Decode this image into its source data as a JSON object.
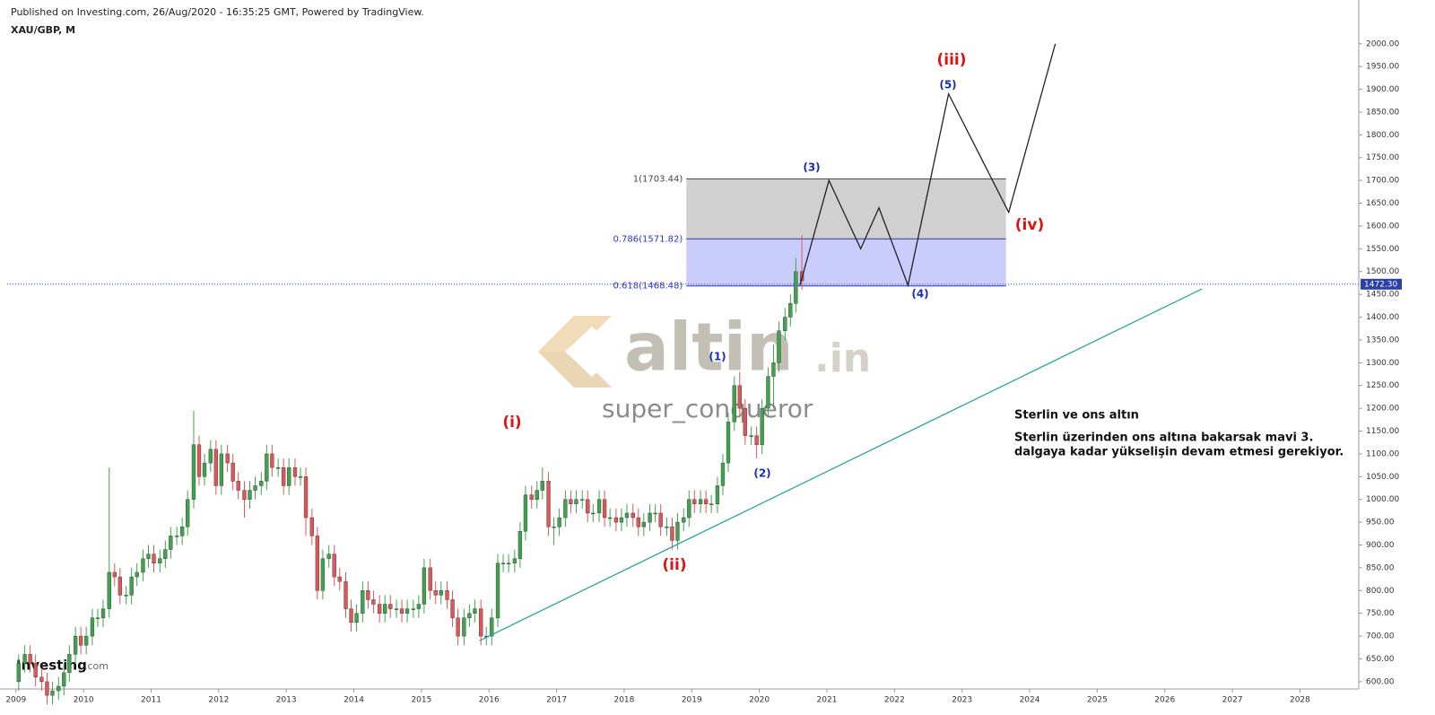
{
  "header": {
    "published": "Published on Investing.com, 26/Aug/2020 - 16:35:25 GMT, Powered by TradingView.",
    "symbol": "XAU/GBP, M"
  },
  "watermark": {
    "brand": "altin",
    "suffix": ".in",
    "author": "super_conqueror",
    "logo": "Investing",
    "logo_suffix": ".com"
  },
  "note": {
    "title": "Sterlin ve ons altın",
    "lines": [
      "Sterlin üzerinden ons altına bakarsak mavi 3.",
      "dalgaya kadar yükselişin devam etmesi gerekiyor."
    ]
  },
  "wave_labels": [
    {
      "text": "(i)",
      "color": "#e01010"
    },
    {
      "text": "(ii)",
      "color": "#e01010"
    },
    {
      "text": "(iii)",
      "color": "#e01010"
    },
    {
      "text": "(iv)",
      "color": "#e01010"
    },
    {
      "text": "(1)",
      "color": "#1a2fb0"
    },
    {
      "text": "(2)",
      "color": "#1a2fb0"
    },
    {
      "text": "(3)",
      "color": "#1a2fb0"
    },
    {
      "text": "(4)",
      "color": "#1a2fb0"
    },
    {
      "text": "(5)",
      "color": "#1a2fb0"
    }
  ],
  "chart_data": {
    "type": "candlestick",
    "x": [
      2009.04,
      2009.13,
      2009.21,
      2009.29,
      2009.38,
      2009.46,
      2009.54,
      2009.63,
      2009.71,
      2009.79,
      2009.88,
      2009.96,
      2010.04,
      2010.13,
      2010.21,
      2010.29,
      2010.38,
      2010.46,
      2010.54,
      2010.63,
      2010.71,
      2010.79,
      2010.88,
      2010.96,
      2011.04,
      2011.13,
      2011.21,
      2011.29,
      2011.38,
      2011.46,
      2011.54,
      2011.63,
      2011.71,
      2011.79,
      2011.88,
      2011.96,
      2012.04,
      2012.13,
      2012.21,
      2012.29,
      2012.38,
      2012.46,
      2012.54,
      2012.63,
      2012.71,
      2012.79,
      2012.88,
      2012.96,
      2013.04,
      2013.13,
      2013.21,
      2013.29,
      2013.38,
      2013.46,
      2013.54,
      2013.63,
      2013.71,
      2013.79,
      2013.88,
      2013.96,
      2014.04,
      2014.13,
      2014.21,
      2014.29,
      2014.38,
      2014.46,
      2014.54,
      2014.63,
      2014.71,
      2014.79,
      2014.88,
      2014.96,
      2015.04,
      2015.13,
      2015.21,
      2015.29,
      2015.38,
      2015.46,
      2015.54,
      2015.63,
      2015.71,
      2015.79,
      2015.88,
      2015.96,
      2016.04,
      2016.13,
      2016.21,
      2016.29,
      2016.38,
      2016.46,
      2016.54,
      2016.63,
      2016.71,
      2016.79,
      2016.88,
      2016.96,
      2017.04,
      2017.13,
      2017.21,
      2017.29,
      2017.38,
      2017.46,
      2017.54,
      2017.63,
      2017.71,
      2017.79,
      2017.88,
      2017.96,
      2018.04,
      2018.13,
      2018.21,
      2018.29,
      2018.38,
      2018.46,
      2018.54,
      2018.63,
      2018.71,
      2018.79,
      2018.88,
      2018.96,
      2019.04,
      2019.13,
      2019.21,
      2019.29,
      2019.38,
      2019.46,
      2019.54,
      2019.63,
      2019.71,
      2019.79,
      2019.88,
      2019.96,
      2020.04,
      2020.13,
      2020.21,
      2020.29,
      2020.38,
      2020.46,
      2020.54,
      2020.63
    ],
    "open": [
      600,
      640,
      660,
      640,
      610,
      600,
      570,
      580,
      590,
      620,
      660,
      700,
      680,
      700,
      740,
      740,
      760,
      840,
      830,
      790,
      790,
      830,
      840,
      870,
      880,
      860,
      870,
      890,
      920,
      920,
      940,
      1000,
      1120,
      1050,
      1080,
      1110,
      1030,
      1100,
      1080,
      1040,
      1020,
      1000,
      1020,
      1030,
      1040,
      1100,
      1070,
      1070,
      1030,
      1070,
      1050,
      1050,
      960,
      920,
      800,
      870,
      880,
      830,
      820,
      760,
      730,
      750,
      800,
      780,
      770,
      750,
      770,
      760,
      760,
      750,
      760,
      760,
      770,
      850,
      800,
      790,
      800,
      780,
      740,
      700,
      740,
      750,
      760,
      700,
      700,
      740,
      860,
      860,
      860,
      870,
      930,
      1010,
      1000,
      1020,
      1040,
      940,
      940,
      960,
      1000,
      990,
      1000,
      1000,
      970,
      970,
      1000,
      960,
      960,
      950,
      960,
      970,
      960,
      940,
      950,
      970,
      970,
      940,
      940,
      910,
      950,
      960,
      1000,
      990,
      1000,
      990,
      990,
      1030,
      1080,
      1170,
      1250,
      1200,
      1140,
      1140,
      1120,
      1200,
      1270,
      1300,
      1370,
      1400,
      1430,
      1500
    ],
    "high": [
      660,
      680,
      680,
      660,
      630,
      620,
      600,
      610,
      640,
      680,
      720,
      720,
      720,
      760,
      760,
      780,
      1070,
      860,
      850,
      810,
      850,
      860,
      890,
      900,
      900,
      890,
      910,
      940,
      940,
      960,
      1020,
      1195,
      1140,
      1100,
      1130,
      1130,
      1120,
      1120,
      1100,
      1060,
      1040,
      1040,
      1050,
      1060,
      1120,
      1120,
      1090,
      1090,
      1090,
      1090,
      1070,
      1070,
      980,
      940,
      890,
      900,
      900,
      850,
      840,
      780,
      770,
      820,
      820,
      800,
      790,
      790,
      790,
      780,
      780,
      780,
      780,
      790,
      870,
      870,
      820,
      820,
      820,
      800,
      760,
      760,
      770,
      780,
      780,
      720,
      760,
      880,
      880,
      880,
      890,
      950,
      1030,
      1030,
      1040,
      1070,
      1060,
      960,
      980,
      1020,
      1020,
      1020,
      1020,
      1020,
      990,
      1020,
      1020,
      980,
      980,
      980,
      990,
      990,
      980,
      970,
      990,
      990,
      990,
      960,
      960,
      970,
      980,
      1020,
      1020,
      1020,
      1020,
      1010,
      1050,
      1100,
      1190,
      1270,
      1280,
      1220,
      1160,
      1160,
      1220,
      1290,
      1340,
      1390,
      1420,
      1450,
      1530,
      1580
    ],
    "low": [
      580,
      620,
      620,
      590,
      580,
      550,
      550,
      560,
      570,
      600,
      640,
      660,
      660,
      680,
      720,
      720,
      740,
      810,
      770,
      770,
      770,
      810,
      820,
      850,
      840,
      840,
      850,
      870,
      900,
      900,
      920,
      980,
      1030,
      1030,
      1060,
      1010,
      1010,
      1060,
      1020,
      1000,
      960,
      980,
      1000,
      1010,
      1020,
      1050,
      1050,
      1010,
      1010,
      1030,
      1030,
      920,
      900,
      780,
      780,
      850,
      810,
      800,
      740,
      710,
      710,
      730,
      760,
      750,
      730,
      730,
      740,
      740,
      730,
      730,
      740,
      740,
      750,
      780,
      770,
      770,
      760,
      720,
      680,
      680,
      720,
      730,
      680,
      680,
      680,
      720,
      840,
      840,
      840,
      850,
      910,
      980,
      980,
      1000,
      920,
      900,
      920,
      940,
      970,
      970,
      980,
      950,
      950,
      950,
      940,
      940,
      930,
      930,
      940,
      940,
      920,
      920,
      930,
      950,
      920,
      920,
      890,
      890,
      930,
      940,
      970,
      970,
      970,
      970,
      970,
      1010,
      1060,
      1150,
      1180,
      1120,
      1120,
      1090,
      1100,
      1180,
      1200,
      1280,
      1350,
      1380,
      1410,
      1460
    ],
    "close": [
      640,
      660,
      640,
      610,
      600,
      570,
      580,
      590,
      620,
      660,
      700,
      680,
      700,
      740,
      740,
      760,
      840,
      830,
      790,
      790,
      830,
      840,
      870,
      880,
      860,
      870,
      890,
      920,
      920,
      940,
      1000,
      1120,
      1050,
      1080,
      1110,
      1030,
      1100,
      1080,
      1040,
      1020,
      1000,
      1020,
      1030,
      1040,
      1100,
      1070,
      1070,
      1030,
      1070,
      1050,
      1050,
      960,
      920,
      800,
      870,
      880,
      830,
      820,
      760,
      730,
      750,
      800,
      780,
      770,
      750,
      770,
      760,
      760,
      750,
      760,
      760,
      770,
      850,
      800,
      790,
      800,
      780,
      740,
      700,
      740,
      750,
      760,
      700,
      700,
      740,
      860,
      860,
      860,
      870,
      930,
      1010,
      1000,
      1020,
      1040,
      940,
      940,
      960,
      1000,
      990,
      1000,
      1000,
      970,
      970,
      1000,
      960,
      960,
      950,
      960,
      970,
      960,
      940,
      950,
      970,
      970,
      940,
      940,
      910,
      950,
      960,
      1000,
      990,
      1000,
      990,
      990,
      1030,
      1080,
      1170,
      1250,
      1200,
      1140,
      1140,
      1120,
      1200,
      1270,
      1300,
      1370,
      1400,
      1430,
      1500,
      1480
    ],
    "up_color": "#3fa34d",
    "down_color": "#e05558",
    "xlim": [
      2008.87,
      2028.87
    ],
    "xticks": [
      2009,
      2010,
      2011,
      2012,
      2013,
      2014,
      2015,
      2016,
      2017,
      2018,
      2019,
      2020,
      2021,
      2022,
      2023,
      2024,
      2025,
      2026,
      2027,
      2028
    ],
    "ylim": [
      584,
      2096
    ],
    "yticks": [
      {
        "value": 600,
        "label": "600.00"
      },
      {
        "value": 650,
        "label": "650.00"
      },
      {
        "value": 700,
        "label": "700.00"
      },
      {
        "value": 750,
        "label": "750.00"
      },
      {
        "value": 800,
        "label": "800.00"
      },
      {
        "value": 850,
        "label": "850.00"
      },
      {
        "value": 900,
        "label": "900.00"
      },
      {
        "value": 950,
        "label": "950.00"
      },
      {
        "value": 1000,
        "label": "1000.00"
      },
      {
        "value": 1050,
        "label": "1050.00"
      },
      {
        "value": 1100,
        "label": "1100.00"
      },
      {
        "value": 1150,
        "label": "1150.00"
      },
      {
        "value": 1200,
        "label": "1200.00"
      },
      {
        "value": 1250,
        "label": "1250.00"
      },
      {
        "value": 1300,
        "label": "1300.00"
      },
      {
        "value": 1350,
        "label": "1350.00"
      },
      {
        "value": 1400,
        "label": "1400.00"
      },
      {
        "value": 1450,
        "label": "1450.00"
      },
      {
        "value": 1500,
        "label": "1500.00"
      },
      {
        "value": 1550,
        "label": "1550.00"
      },
      {
        "value": 1600,
        "label": "1600.00"
      },
      {
        "value": 1650,
        "label": "1650.00"
      },
      {
        "value": 1700,
        "label": "1700.00"
      },
      {
        "value": 1750,
        "label": "1750.00"
      },
      {
        "value": 1800,
        "label": "1800.00"
      },
      {
        "value": 1850,
        "label": "1850.00"
      },
      {
        "value": 1900,
        "label": "1900.00"
      },
      {
        "value": 1950,
        "label": "1950.00"
      },
      {
        "value": 2000,
        "label": "2000.00"
      }
    ],
    "last_price": {
      "value": 1472.3,
      "label": "1472.30"
    },
    "fib": {
      "x": [
        2018.92,
        2023.65
      ],
      "levels": [
        {
          "value": 1703.44,
          "label": "1(1703.44)"
        },
        {
          "value": 1571.82,
          "label": "0.786(1571.82)"
        },
        {
          "value": 1468.48,
          "label": "0.618(1468.48)"
        }
      ]
    },
    "trendline": {
      "x": [
        2015.86,
        2026.55
      ],
      "y": [
        690,
        1462
      ],
      "color": "#2aa5a0"
    },
    "projection": {
      "x": [
        2020.6,
        2021.03,
        2021.5,
        2021.77,
        2022.2,
        2022.8,
        2023.69,
        2024.38
      ],
      "y": [
        1470,
        1700,
        1550,
        1640,
        1470,
        1890,
        1630,
        2000
      ],
      "color": "#222222"
    }
  }
}
